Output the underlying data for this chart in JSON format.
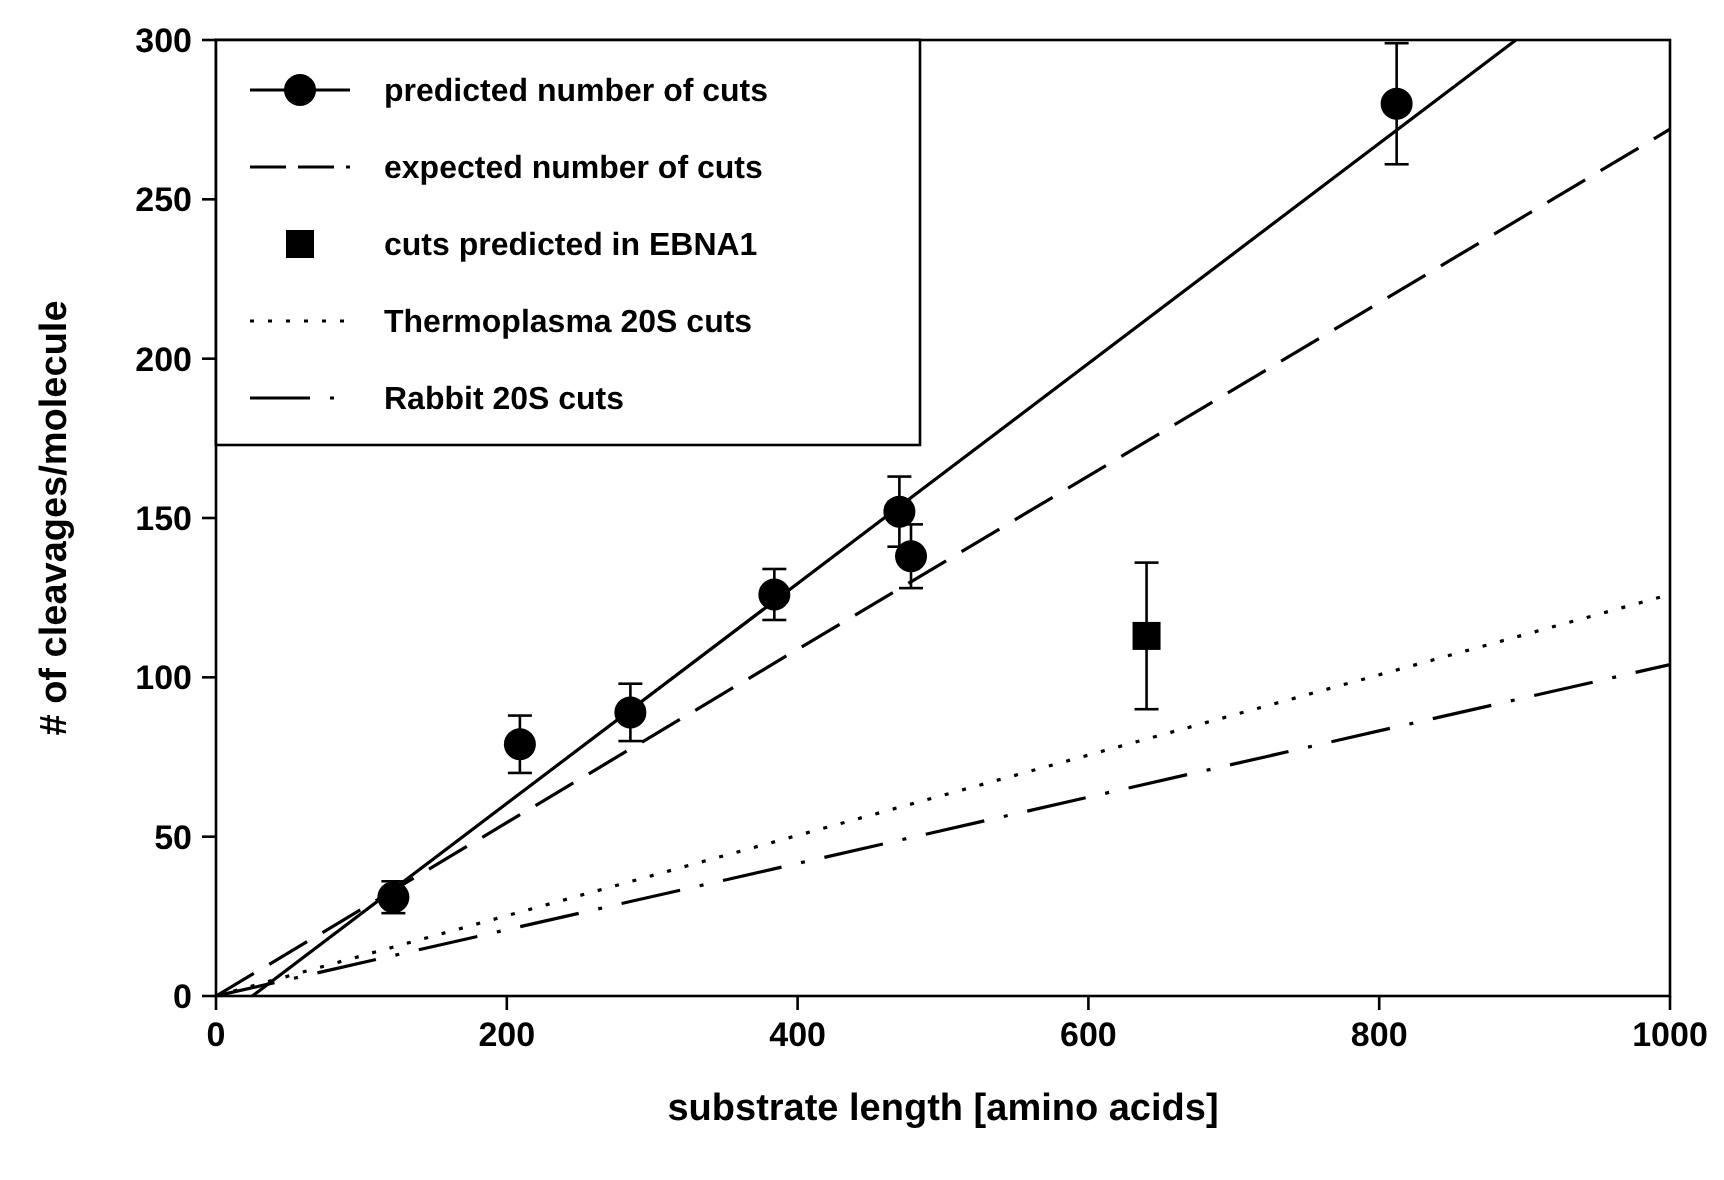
{
  "chart_data": {
    "type": "scatter",
    "xlabel": "substrate length [amino acids]",
    "ylabel": "# of cleavages/molecule",
    "xlim": [
      0,
      1000
    ],
    "ylim": [
      0,
      300
    ],
    "xticks": [
      0,
      200,
      400,
      600,
      800,
      1000
    ],
    "yticks": [
      0,
      50,
      100,
      150,
      200,
      250,
      300
    ],
    "grid": false,
    "legend": "top left",
    "series": [
      {
        "name": "predicted number of cuts",
        "marker": "circle",
        "color": "#000000",
        "x": [
          122,
          209,
          285,
          384,
          470,
          478,
          812
        ],
        "values": [
          31,
          79,
          89,
          126,
          152,
          138,
          280
        ],
        "errors": [
          5,
          9,
          9,
          8,
          11,
          10,
          19
        ]
      },
      {
        "type": "line",
        "marker": "none",
        "line_style": "solid",
        "color": "#000000",
        "x": [
          25,
          894
        ],
        "values": [
          0,
          300
        ]
      },
      {
        "name": "expected number of cuts",
        "type": "line",
        "marker": "none",
        "line_style": "dashed",
        "color": "#000000",
        "x": [
          0,
          1000
        ],
        "values": [
          0,
          272
        ]
      },
      {
        "name": "cuts predicted in EBNA1",
        "marker": "square",
        "color": "#000000",
        "x": [
          640
        ],
        "values": [
          113
        ],
        "errors": [
          23
        ]
      },
      {
        "name": "Thermoplasma 20S cuts",
        "type": "line",
        "marker": "none",
        "line_style": "dotted",
        "color": "#000000",
        "x": [
          0,
          1000
        ],
        "values": [
          0,
          126
        ]
      },
      {
        "name": "Rabbit 20S cuts",
        "type": "line",
        "marker": "none",
        "line_style": "dashdot",
        "color": "#000000",
        "x": [
          0,
          1000
        ],
        "values": [
          0,
          104
        ]
      }
    ]
  }
}
